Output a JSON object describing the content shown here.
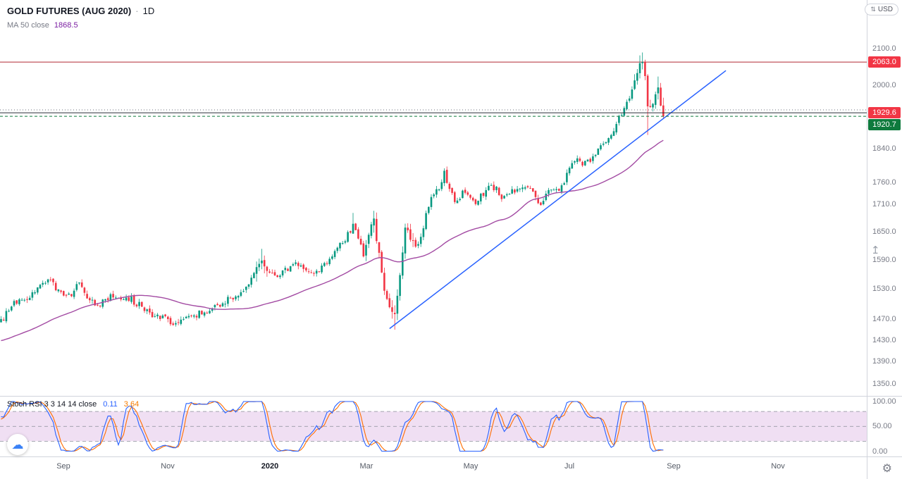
{
  "legend": {
    "title": "GOLD FUTURES (AUG 2020)",
    "separator": "·",
    "interval": "1D",
    "ma_label": "MA 50 close",
    "ma_value": "1868.5"
  },
  "stoch_legend": {
    "label": "Stoch RSI 3 3 14 14 close",
    "k_value": "0.11",
    "d_value": "3.64"
  },
  "buttons": {
    "currency": "USD"
  },
  "icons": {
    "scale_arrows_icon": "⇅",
    "scroll_arrow_icon": "↥",
    "cloud_icon": "☁",
    "gear_icon": "⚙"
  },
  "chart_data": {
    "type": "candlestick",
    "title": "GOLD FUTURES (AUG 2020)",
    "interval": "1D",
    "currency": "USD",
    "grid": false,
    "colors": {
      "up": "#089981",
      "down": "#f23645",
      "ma": "#a34ba3",
      "trend": "#2962ff"
    },
    "price_axis": {
      "scale": "log",
      "ticks": [
        "2100.0",
        "2000.0",
        "1840.0",
        "1760.0",
        "1710.0",
        "1650.0",
        "1590.0",
        "1530.0",
        "1470.0",
        "1430.0",
        "1390.0",
        "1350.0"
      ]
    },
    "price_labels": [
      {
        "text": "2063.0",
        "bg": "#f23645",
        "price": 2063.0
      },
      {
        "text": "1929.6",
        "bg": "#f23645",
        "price": 1929.6
      },
      {
        "text": "1920.7",
        "bg": "#0e7a3d",
        "price": 1920.7
      }
    ],
    "hlines": [
      {
        "price": 2063.0,
        "color": "#b22833",
        "style": "solid"
      },
      {
        "price": 1937.0,
        "color": "#6a6d78",
        "style": "dotted"
      },
      {
        "price": 1929.6,
        "color": "#2a2e39",
        "style": "solid"
      },
      {
        "price": 1920.7,
        "color": "#0e7a3d",
        "style": "dashed"
      }
    ],
    "time_axis": {
      "ticks": [
        {
          "label": "Sep",
          "day": 24
        },
        {
          "label": "Nov",
          "day": 64
        },
        {
          "label": "2020",
          "day": 103,
          "bold": true
        },
        {
          "label": "Mar",
          "day": 140
        },
        {
          "label": "May",
          "day": 180
        },
        {
          "label": "Jul",
          "day": 218
        },
        {
          "label": "Sep",
          "day": 258
        },
        {
          "label": "Nov",
          "day": 298
        }
      ]
    },
    "candles": {
      "first_day": -55,
      "last_day": 254,
      "anchors": [
        [
          -55,
          1400
        ],
        [
          -30,
          1422
        ],
        [
          -10,
          1442
        ],
        [
          0,
          1465
        ],
        [
          4,
          1500
        ],
        [
          10,
          1512
        ],
        [
          14,
          1530
        ],
        [
          18,
          1552
        ],
        [
          22,
          1528
        ],
        [
          26,
          1515
        ],
        [
          30,
          1540
        ],
        [
          34,
          1505
        ],
        [
          38,
          1498
        ],
        [
          42,
          1518
        ],
        [
          46,
          1512
        ],
        [
          50,
          1508
        ],
        [
          54,
          1494
        ],
        [
          58,
          1476
        ],
        [
          62,
          1472
        ],
        [
          66,
          1465
        ],
        [
          70,
          1472
        ],
        [
          75,
          1480
        ],
        [
          80,
          1485
        ],
        [
          84,
          1498
        ],
        [
          88,
          1512
        ],
        [
          92,
          1518
        ],
        [
          96,
          1552
        ],
        [
          100,
          1588
        ],
        [
          102,
          1565
        ],
        [
          106,
          1558
        ],
        [
          110,
          1572
        ],
        [
          114,
          1582
        ],
        [
          118,
          1570
        ],
        [
          120,
          1562
        ],
        [
          124,
          1578
        ],
        [
          128,
          1608
        ],
        [
          132,
          1635
        ],
        [
          135,
          1662
        ],
        [
          137,
          1642
        ],
        [
          139,
          1592
        ],
        [
          141,
          1648
        ],
        [
          143,
          1672
        ],
        [
          145,
          1600
        ],
        [
          147,
          1520
        ],
        [
          149,
          1490
        ],
        [
          151,
          1478
        ],
        [
          153,
          1555
        ],
        [
          155,
          1655
        ],
        [
          157,
          1638
        ],
        [
          159,
          1618
        ],
        [
          161,
          1640
        ],
        [
          163,
          1688
        ],
        [
          165,
          1720
        ],
        [
          168,
          1752
        ],
        [
          170,
          1780
        ],
        [
          172,
          1745
        ],
        [
          174,
          1712
        ],
        [
          176,
          1730
        ],
        [
          178,
          1742
        ],
        [
          180,
          1720
        ],
        [
          182,
          1712
        ],
        [
          184,
          1728
        ],
        [
          186,
          1742
        ],
        [
          188,
          1752
        ],
        [
          190,
          1748
        ],
        [
          192,
          1722
        ],
        [
          194,
          1730
        ],
        [
          196,
          1742
        ],
        [
          198,
          1738
        ],
        [
          200,
          1748
        ],
        [
          203,
          1752
        ],
        [
          206,
          1708
        ],
        [
          208,
          1722
        ],
        [
          210,
          1742
        ],
        [
          212,
          1738
        ],
        [
          214,
          1742
        ],
        [
          216,
          1765
        ],
        [
          218,
          1800
        ],
        [
          220,
          1812
        ],
        [
          222,
          1810
        ],
        [
          224,
          1806
        ],
        [
          226,
          1812
        ],
        [
          228,
          1825
        ],
        [
          230,
          1842
        ],
        [
          232,
          1858
        ],
        [
          234,
          1875
        ],
        [
          236,
          1902
        ],
        [
          238,
          1932
        ],
        [
          240,
          1958
        ],
        [
          242,
          1990
        ],
        [
          244,
          2030
        ],
        [
          245,
          2052
        ],
        [
          246,
          2063
        ],
        [
          247,
          2030
        ],
        [
          248,
          1946
        ],
        [
          249,
          1938
        ],
        [
          250,
          1952
        ],
        [
          251,
          1986
        ],
        [
          252,
          1992
        ],
        [
          253,
          1948
        ],
        [
          254,
          1920.7
        ]
      ],
      "wick_overrides": {
        "100": [
          1613,
          null
        ],
        "135": [
          1691,
          null
        ],
        "151": [
          null,
          1450
        ],
        "246": [
          2089.2,
          null
        ],
        "248": [
          null,
          1874
        ],
        "252": [
          2024,
          null
        ]
      },
      "force_close": {
        "246": 2063.0,
        "248": 1946.0,
        "254": 1920.7
      }
    },
    "ma50": {
      "period": 50,
      "last_value": 1868.5
    },
    "trendline": {
      "from": [
        149,
        1452
      ],
      "to": [
        278,
        2040
      ]
    },
    "stoch_rsi": {
      "params": [
        3,
        3,
        14,
        14
      ],
      "source": "close",
      "k_last": 0.11,
      "d_last": 3.64,
      "k_color": "#2962ff",
      "d_color": "#ff6d00",
      "band": [
        20,
        80
      ],
      "band_fill": "rgba(156,39,176,0.15)",
      "ticks": [
        "100.00",
        "50.00",
        "0.00"
      ],
      "tick_values": [
        100,
        50,
        0
      ]
    }
  }
}
